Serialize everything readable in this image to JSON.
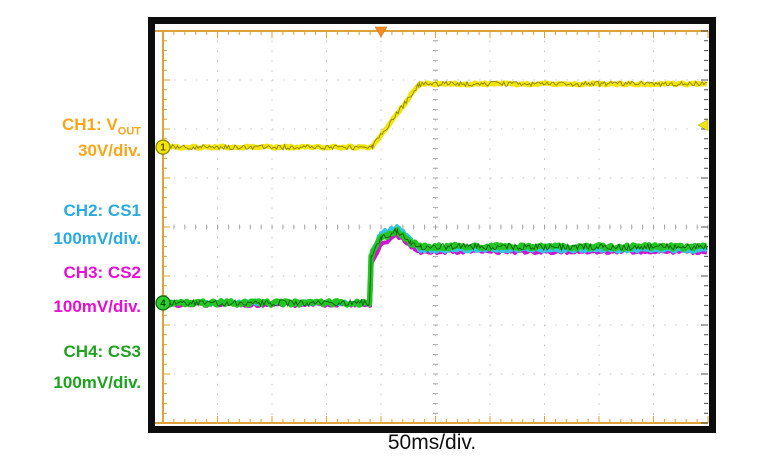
{
  "labels": {
    "ch1": {
      "line1_prefix": "CH1: V",
      "line1_sub": "OUT",
      "line2": "30V/div.",
      "color": "#FAA61A"
    },
    "ch2": {
      "line1": "CH2: CS1",
      "line2": "100mV/div.",
      "color": "#29ABE2"
    },
    "ch3": {
      "line1": "CH3: CS2",
      "line2": "100mV/div.",
      "color": "#E90ED5"
    },
    "ch4": {
      "line1": "CH4: CS3",
      "line2": "100mV/div.",
      "color": "#1FA21F"
    }
  },
  "x_axis_caption": "50ms/div.",
  "chart_data": {
    "type": "line",
    "instrument": "oscilloscope",
    "timebase": "50ms/div.",
    "horizontal_divisions": 10,
    "vertical_divisions": 8,
    "grid_color": "#c7c7c7",
    "center_tick_color": "#9b9b9b",
    "axis_color": "#DCA339",
    "right_tick_color": "#4c4c4c",
    "frame_color": "#0d0d0d",
    "channels": [
      {
        "name": "CH1: VOUT",
        "scale": "30V/div.",
        "color": "#F0E40A",
        "speckle": "#7d7500",
        "width": 5,
        "noise": 1.1,
        "speckle_noise": 2.6,
        "points_div": [
          [
            0,
            2.37
          ],
          [
            3.84,
            2.37
          ],
          [
            4.7,
            1.08
          ],
          [
            10,
            1.08
          ]
        ]
      },
      {
        "name": "CH2: CS1",
        "scale": "100mV/div.",
        "color": "#35C6E6",
        "width": 4,
        "noise": 1.6,
        "points_div": [
          [
            0,
            5.55
          ],
          [
            3.8,
            5.55
          ],
          [
            3.83,
            4.52
          ],
          [
            4.0,
            4.12
          ],
          [
            4.3,
            4.0
          ],
          [
            4.55,
            4.25
          ],
          [
            4.72,
            4.47
          ],
          [
            10,
            4.47
          ]
        ]
      },
      {
        "name": "CH3: CS2",
        "scale": "100mV/div.",
        "color": "#CC17CC",
        "width": 4,
        "noise": 1.6,
        "points_div": [
          [
            0,
            5.58
          ],
          [
            3.8,
            5.58
          ],
          [
            3.83,
            4.75
          ],
          [
            4.0,
            4.35
          ],
          [
            4.3,
            4.17
          ],
          [
            4.55,
            4.38
          ],
          [
            4.72,
            4.5
          ],
          [
            10,
            4.5
          ]
        ]
      },
      {
        "name": "CH4: CS3",
        "scale": "100mV/div.",
        "color": "#23C523",
        "speckle": "#0a4d0a",
        "width": 5.5,
        "noise": 2.2,
        "speckle_noise": 3.2,
        "points_div": [
          [
            0,
            5.55
          ],
          [
            3.79,
            5.55
          ],
          [
            3.82,
            4.58
          ],
          [
            4.0,
            4.22
          ],
          [
            4.3,
            4.08
          ],
          [
            4.55,
            4.32
          ],
          [
            4.72,
            4.4
          ],
          [
            10,
            4.41
          ]
        ]
      }
    ],
    "trigger_marker": {
      "x_div": 4.0,
      "color": "#F28C1E",
      "edge": "#c06a10"
    },
    "channel_badges": [
      {
        "label": "1",
        "y_div": 2.37,
        "fill": "#F2E50C",
        "stroke": "#8f8600",
        "text_color": "#5a5200"
      },
      {
        "label": "4",
        "y_div": 5.55,
        "fill": "#2ECC2E",
        "stroke": "#0e6e0e",
        "text_color": "#0b4d0b"
      }
    ],
    "right_level_marker": {
      "y_div": 1.92,
      "color": "#F2E50C",
      "edge": "#b0a500"
    }
  }
}
